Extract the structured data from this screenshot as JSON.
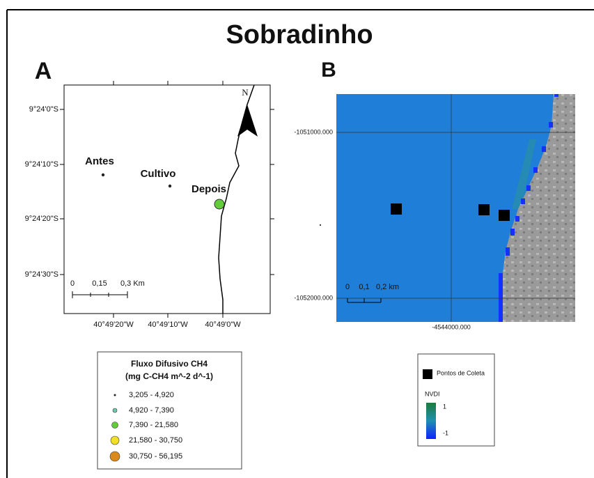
{
  "title": "Sobradinho",
  "panel_a": {
    "label": "A",
    "lat_labels": [
      "9°24'0\"S",
      "9°24'10\"S",
      "9°24'20\"S",
      "9°24'30\"S"
    ],
    "lon_labels": [
      "40°49'20\"W",
      "40°49'10\"W",
      "40°49'0\"W"
    ],
    "point_labels": [
      "Antes",
      "Cultivo",
      "Depois"
    ],
    "north": "N",
    "scale_labels": [
      "0",
      "0,15",
      "0,3 Km"
    ]
  },
  "legend_a": {
    "title": "Fluxo Difusivo CH4",
    "subtitle": "(mg C-CH4 m^-2 d^-1)",
    "classes": [
      "3,205 - 4,920",
      "4,920 - 7,390",
      "7,390 - 21,580",
      "21,580 - 30,750",
      "30,750 - 56,195"
    ]
  },
  "panel_b": {
    "label": "B",
    "y_labels": [
      "-1051000.000",
      "-1052000.000"
    ],
    "x_labels": [
      "-4544000.000"
    ],
    "scale_labels": [
      "0",
      "0,1",
      "0,2 km"
    ]
  },
  "legend_b": {
    "points": "Pontos de Coleta",
    "ndvi_title": "NVDI",
    "ndvi_max": "1",
    "ndvi_min": "-1"
  }
}
